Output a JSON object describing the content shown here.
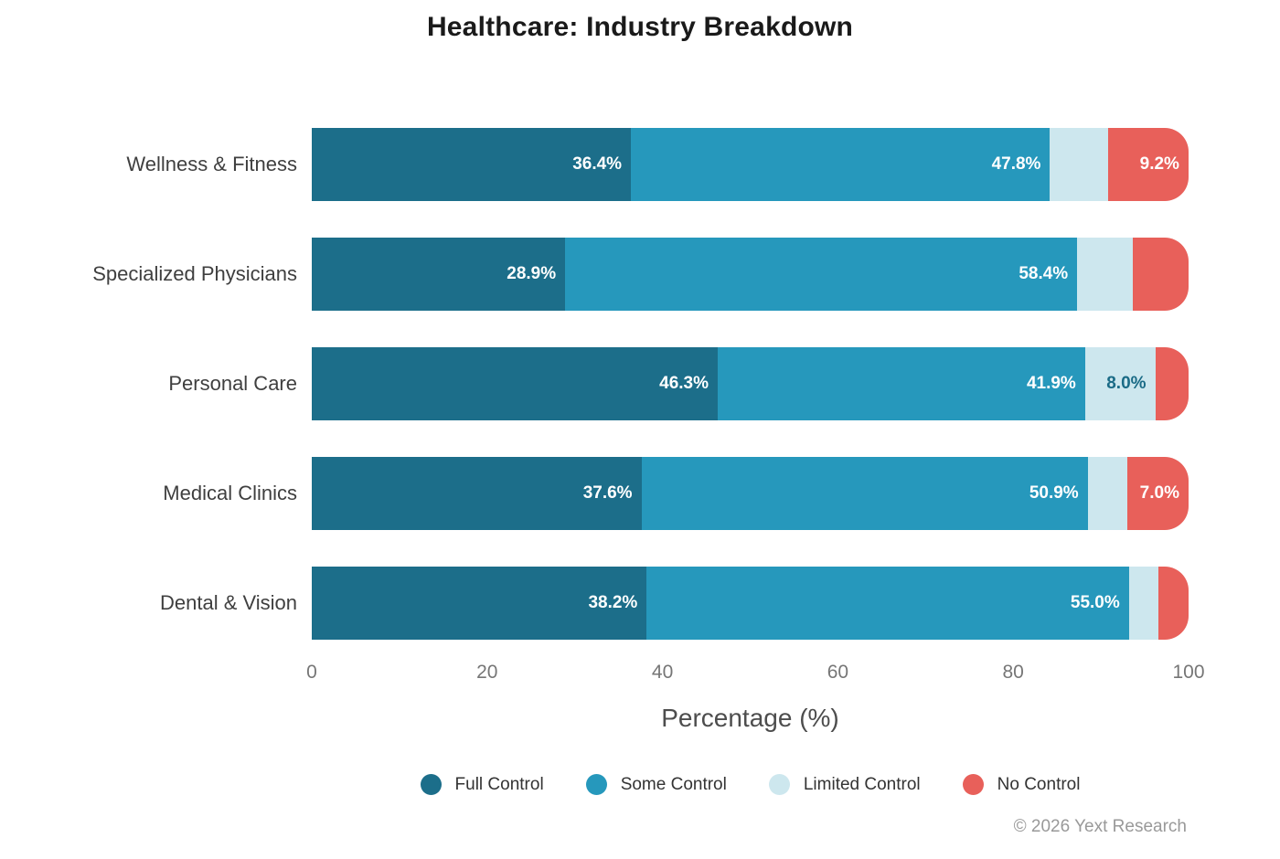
{
  "title": "Healthcare: Industry Breakdown",
  "footer": "© 2026 Yext Research",
  "colors": {
    "background": "#ffffff",
    "title_text": "#1a1a1a",
    "category_text": "#3f3f3f",
    "tick_text": "#767676",
    "axis_label_text": "#4d4d4d",
    "legend_text": "#333333",
    "footer_text": "#999999"
  },
  "chart_data": {
    "type": "bar",
    "orientation": "horizontal",
    "stacked": true,
    "title": "Healthcare: Industry Breakdown",
    "xlabel": "Percentage (%)",
    "xlim": [
      0,
      100
    ],
    "xticks": [
      0,
      20,
      40,
      60,
      80,
      100
    ],
    "grid": false,
    "legend_position": "bottom",
    "value_label_suffix": "%",
    "value_label_decimals": 1,
    "value_label_min": 7,
    "categories": [
      "Wellness & Fitness",
      "Specialized Physicians",
      "Personal Care",
      "Medical Clinics",
      "Dental & Vision"
    ],
    "series": [
      {
        "name": "Full Control",
        "color": "#1c6e8a",
        "label_color": "#ffffff",
        "values": [
          36.4,
          28.9,
          46.3,
          37.6,
          38.2
        ]
      },
      {
        "name": "Some Control",
        "color": "#2698bc",
        "label_color": "#ffffff",
        "values": [
          47.8,
          58.4,
          41.9,
          50.9,
          55.0
        ]
      },
      {
        "name": "Limited Control",
        "color": "#cde7ee",
        "label_color": "#1a6b86",
        "values": [
          6.6,
          6.3,
          8.0,
          4.5,
          3.4
        ]
      },
      {
        "name": "No Control",
        "color": "#e8605a",
        "label_color": "#ffffff",
        "values": [
          9.2,
          6.4,
          3.8,
          7.0,
          3.4
        ]
      }
    ]
  }
}
